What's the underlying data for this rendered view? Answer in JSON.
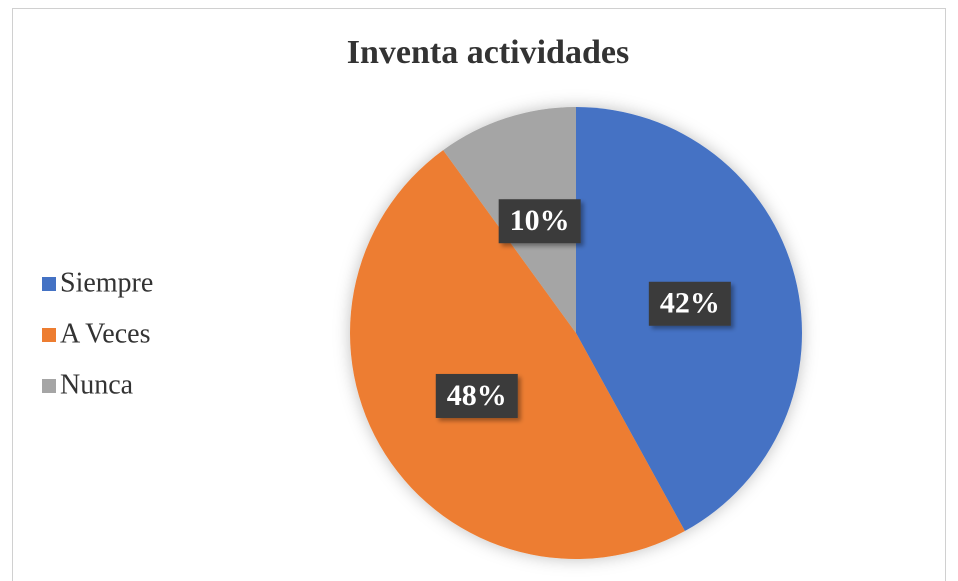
{
  "chart_data": {
    "type": "pie",
    "title": "Inventa actividades",
    "categories": [
      "Siempre",
      "A Veces",
      "Nunca"
    ],
    "values": [
      42,
      48,
      10
    ],
    "value_labels": [
      "42%",
      "48%",
      "10%"
    ],
    "colors": [
      "#4472c4",
      "#ed7d31",
      "#a5a5a5"
    ],
    "legend": "left"
  }
}
